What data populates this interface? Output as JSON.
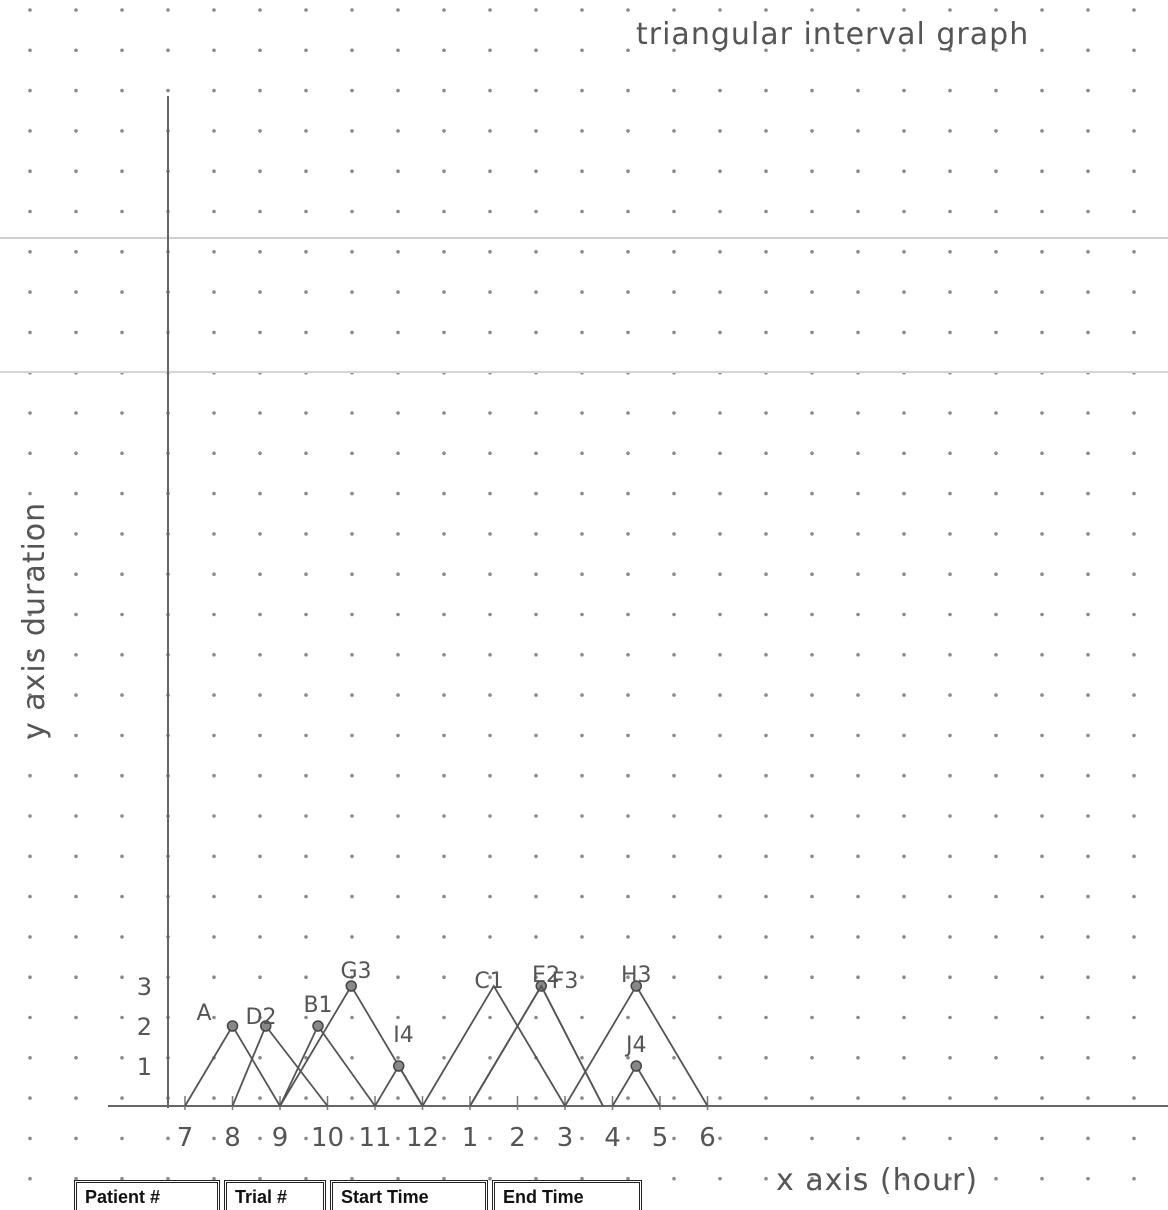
{
  "chart_data": {
    "type": "line",
    "title": "triangular interval graph",
    "xlabel": "x axis (hour)",
    "ylabel": "y axis duration",
    "x_ticks": [
      "7",
      "8",
      "9",
      "10",
      "11",
      "12",
      "1",
      "2",
      "3",
      "4",
      "5",
      "6"
    ],
    "y_ticks": [
      "1",
      "2",
      "3"
    ],
    "xlim": [
      7,
      18
    ],
    "ylim": [
      0,
      3
    ],
    "grid": "dotted",
    "series": [
      {
        "name": "A",
        "start": 7,
        "end": 9,
        "duration": 2,
        "peak": 8,
        "dot": true
      },
      {
        "name": "D2",
        "start": 8,
        "end": 10,
        "duration": 2,
        "peak": 8.7,
        "dot": true
      },
      {
        "name": "B1",
        "start": 9,
        "end": 11,
        "duration": 2,
        "peak": 9.8,
        "dot": true
      },
      {
        "name": "G3",
        "start": 9,
        "end": 12,
        "duration": 3,
        "peak": 10.5,
        "dot": true
      },
      {
        "name": "I4",
        "start": 11,
        "end": 12,
        "duration": 1,
        "peak": 11.5,
        "dot": true
      },
      {
        "name": "C1",
        "start": 12,
        "end": 15,
        "duration": 3,
        "peak": 13.5,
        "dot": false
      },
      {
        "name": "E2",
        "start": 13,
        "end": 15.8,
        "duration": 3,
        "peak": 14.5,
        "dot": true
      },
      {
        "name": "F3",
        "start": 13,
        "end": 15.8,
        "duration": 3,
        "peak": 14.5,
        "dot": false
      },
      {
        "name": "H3",
        "start": 15,
        "end": 18,
        "duration": 3,
        "peak": 16.5,
        "dot": true
      },
      {
        "name": "J4",
        "start": 16,
        "end": 17,
        "duration": 1,
        "peak": 16.5,
        "dot": true
      }
    ],
    "labels": [
      {
        "text": "A",
        "x": 7.4,
        "y": 2.15
      },
      {
        "text": "D2",
        "x": 8.6,
        "y": 2.05
      },
      {
        "text": "B1",
        "x": 9.8,
        "y": 2.35
      },
      {
        "text": "G3",
        "x": 10.6,
        "y": 3.2
      },
      {
        "text": "I4",
        "x": 11.6,
        "y": 1.6
      },
      {
        "text": "C1",
        "x": 13.4,
        "y": 2.95
      },
      {
        "text": "E2",
        "x": 14.6,
        "y": 3.1
      },
      {
        "text": "F3",
        "x": 15.0,
        "y": 2.95
      },
      {
        "text": "H3",
        "x": 16.5,
        "y": 3.1
      },
      {
        "text": "J4",
        "x": 16.5,
        "y": 1.35
      }
    ]
  },
  "table_header": [
    "Patient #",
    "Trial #",
    "Start Time",
    "End Time"
  ]
}
